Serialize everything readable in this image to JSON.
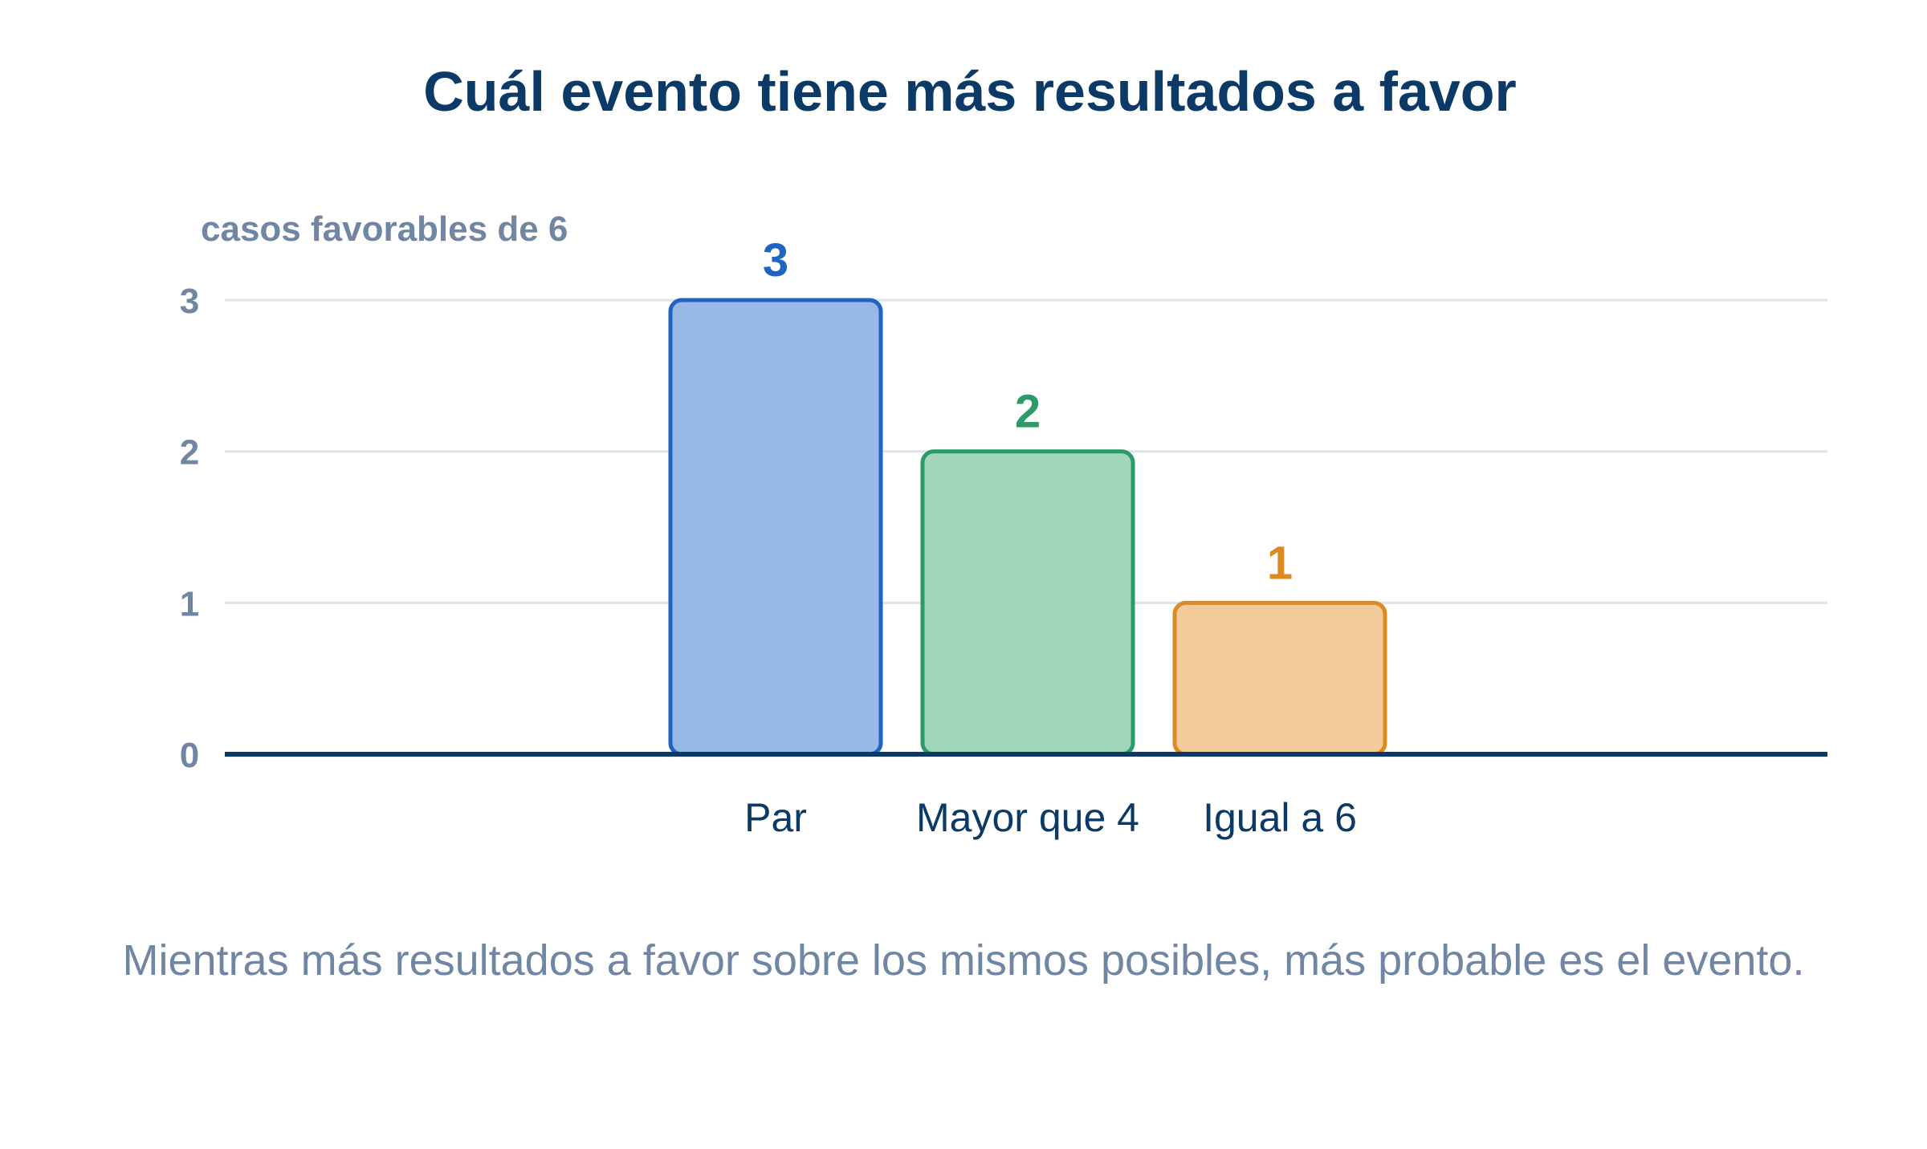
{
  "chart_data": {
    "type": "bar",
    "title": "Cuál evento tiene más resultados a favor",
    "ylabel": "casos favorables de 6",
    "xlabel": "",
    "categories": [
      "Par",
      "Mayor que 4",
      "Igual a 6"
    ],
    "values": [
      3,
      2,
      1
    ],
    "data_labels": [
      "3",
      "2",
      "1"
    ],
    "ylim": [
      0,
      3
    ],
    "yticks": [
      0,
      1,
      2,
      3
    ],
    "ytick_labels": [
      "0",
      "1",
      "2",
      "3"
    ],
    "grid": true,
    "legend": "none",
    "colors": {
      "stroke": [
        "#1e64c0",
        "#2e9a6a",
        "#de8a23"
      ],
      "fill": [
        "#98b8e5",
        "#a2d6bc",
        "#f2cb98"
      ],
      "label": [
        "#1e64c0",
        "#2e9a6a",
        "#de8a23"
      ]
    }
  },
  "caption": "Mientras más resultados a favor sobre los mismos posibles, más probable es el evento."
}
